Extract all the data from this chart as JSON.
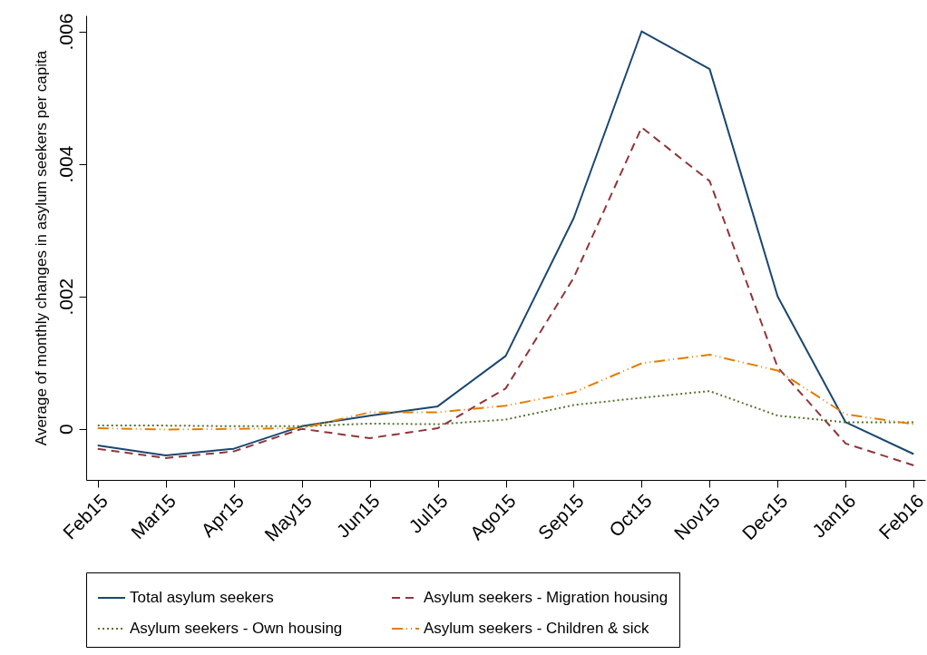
{
  "chart_data": {
    "type": "line",
    "ylabel": "Average of monthly changes in asylum seekers per capita",
    "categories": [
      "Feb15",
      "Mar15",
      "Apr15",
      "May15",
      "Jun15",
      "Jul15",
      "Ago15",
      "Sep15",
      "Oct15",
      "Nov15",
      "Dec15",
      "Jan16",
      "Feb16"
    ],
    "ylim": [
      -0.00077,
      0.00624
    ],
    "yticks": [
      0,
      {
        "value": 0.002,
        "label": ".002"
      },
      {
        "value": 0.004,
        "label": ".004"
      },
      {
        "value": 0.006,
        "label": ".006"
      }
    ],
    "grid": false,
    "legend": "bottom",
    "marker": "none",
    "series": [
      {
        "name": "Total asylum seekers",
        "color": "#1a476f",
        "line_style": "solid",
        "values": [
          -0.00025,
          -0.0004,
          -0.0003,
          4e-05,
          0.0002,
          0.00034,
          0.0011,
          0.00318,
          0.006,
          0.00543,
          0.002,
          0.0001,
          -0.00038
        ]
      },
      {
        "name": "Asylum seekers - Migration housing",
        "color": "#90353b",
        "line_style": "dashed",
        "values": [
          -0.0003,
          -0.00044,
          -0.00034,
          0,
          -0.00014,
          1e-05,
          0.00061,
          0.00228,
          0.00455,
          0.00374,
          0.00093,
          -0.00022,
          -0.00055
        ]
      },
      {
        "name": "Asylum seekers - Own housing",
        "color": "#55752f",
        "line_style": "dotted",
        "values": [
          5e-05,
          5e-05,
          4e-05,
          4e-05,
          8e-05,
          7e-05,
          0.00014,
          0.00036,
          0.00047,
          0.00057,
          0.0002,
          0.0001,
          0.0001
        ]
      },
      {
        "name": "Asylum seekers - Children & sick",
        "color": "#e37e00",
        "line_style": "dashdot",
        "values": [
          1e-05,
          -1e-05,
          0,
          1e-05,
          0.00025,
          0.00025,
          0.00035,
          0.00055,
          0.00099,
          0.00112,
          0.00088,
          0.00022,
          7e-05
        ]
      }
    ]
  }
}
